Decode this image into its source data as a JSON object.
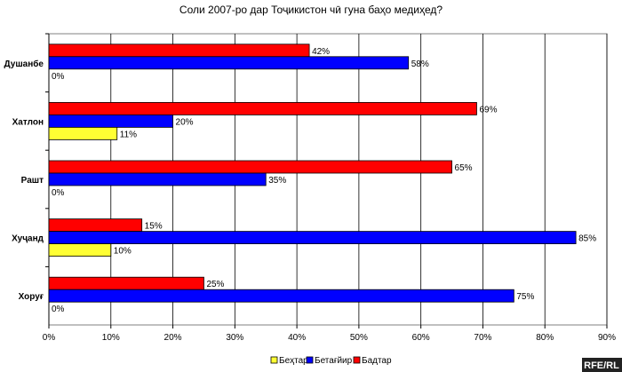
{
  "chart_data": {
    "type": "bar",
    "orientation": "horizontal",
    "title": "Соли 2007-ро дар Тоҷикистон чӣ гуна баҳо медиҳед?",
    "categories": [
      "Душанбе",
      "Хатлон",
      "Рашт",
      "Хуҷанд",
      "Хоруғ"
    ],
    "series": [
      {
        "name": "Бадтар",
        "color": "#ff0000",
        "values": [
          42,
          69,
          65,
          15,
          25
        ]
      },
      {
        "name": "Бетағйир",
        "color": "#0000ff",
        "values": [
          58,
          20,
          35,
          85,
          75
        ]
      },
      {
        "name": "Беҳтар",
        "color": "#ffff33",
        "values": [
          0,
          11,
          0,
          10,
          0
        ]
      }
    ],
    "legend_order": [
      "Беҳтар",
      "Бетағйир",
      "Бадтар"
    ],
    "xlim": [
      0,
      90
    ],
    "xticks": [
      0,
      10,
      20,
      30,
      40,
      50,
      60,
      70,
      80,
      90
    ],
    "tick_suffix": "%",
    "value_suffix": "%",
    "grid": true,
    "legend": "bottom"
  },
  "watermark": "RFE/RL"
}
